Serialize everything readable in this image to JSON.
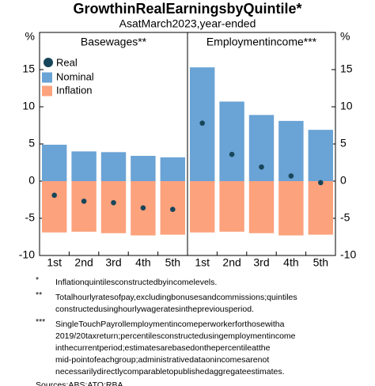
{
  "chart_data": {
    "type": "bar",
    "title": "GrowthinRealEarningsbyQuintile*",
    "subtitle": "AsatMarch2023,year-ended",
    "y_unit": "%",
    "ylim": [
      -10,
      20
    ],
    "yticks": [
      -10,
      -5,
      0,
      5,
      10,
      15
    ],
    "categories": [
      "1st",
      "2nd",
      "3rd",
      "4th",
      "5th"
    ],
    "panels": [
      {
        "title": "Basewages**",
        "series": [
          {
            "name": "Real",
            "color": "#17465a",
            "values": [
              -1.9,
              -2.7,
              -2.9,
              -3.6,
              -3.8
            ]
          },
          {
            "name": "Nominal",
            "color": "#6aa3d5",
            "values": [
              4.9,
              4.0,
              3.9,
              3.4,
              3.2
            ]
          },
          {
            "name": "Inflation",
            "color": "#fca27d",
            "values": [
              -6.9,
              -6.8,
              -7.0,
              -7.3,
              -7.2
            ]
          }
        ]
      },
      {
        "title": "Employmentincome***",
        "series": [
          {
            "name": "Real",
            "color": "#17465a",
            "values": [
              7.8,
              3.6,
              1.9,
              0.7,
              -0.2
            ]
          },
          {
            "name": "Nominal",
            "color": "#6aa3d5",
            "values": [
              15.3,
              10.7,
              8.9,
              8.1,
              6.9
            ]
          },
          {
            "name": "Inflation",
            "color": "#fca27d",
            "values": [
              -6.9,
              -6.8,
              -7.0,
              -7.3,
              -7.2
            ]
          }
        ]
      }
    ],
    "footnotes": [
      {
        "marker": "*",
        "lines": [
          "Inflationquintilesconstructedbyincomelevels."
        ]
      },
      {
        "marker": "**",
        "lines": [
          "Totalhourlyratesofpay,excludingbonusesandcommissions;quintiles",
          "constructedusinghourlywageratesinthepreviousperiod."
        ]
      },
      {
        "marker": "***",
        "lines": [
          "SingleTouchPayrollemploymentincomeperworkerforthosewitha",
          "2019/20taxreturn;percentilesconstructedusingemploymentincome",
          "inthecurrentperiod;estimatesarebasedonthepercentileatthe",
          "mid-pointofeachgroup;administrativedataonincomesarenot",
          "necessarilydirectlycomparabletopublishedaggregateestimates."
        ]
      }
    ],
    "sources": "Sources:ABS;ATO;RBA."
  }
}
